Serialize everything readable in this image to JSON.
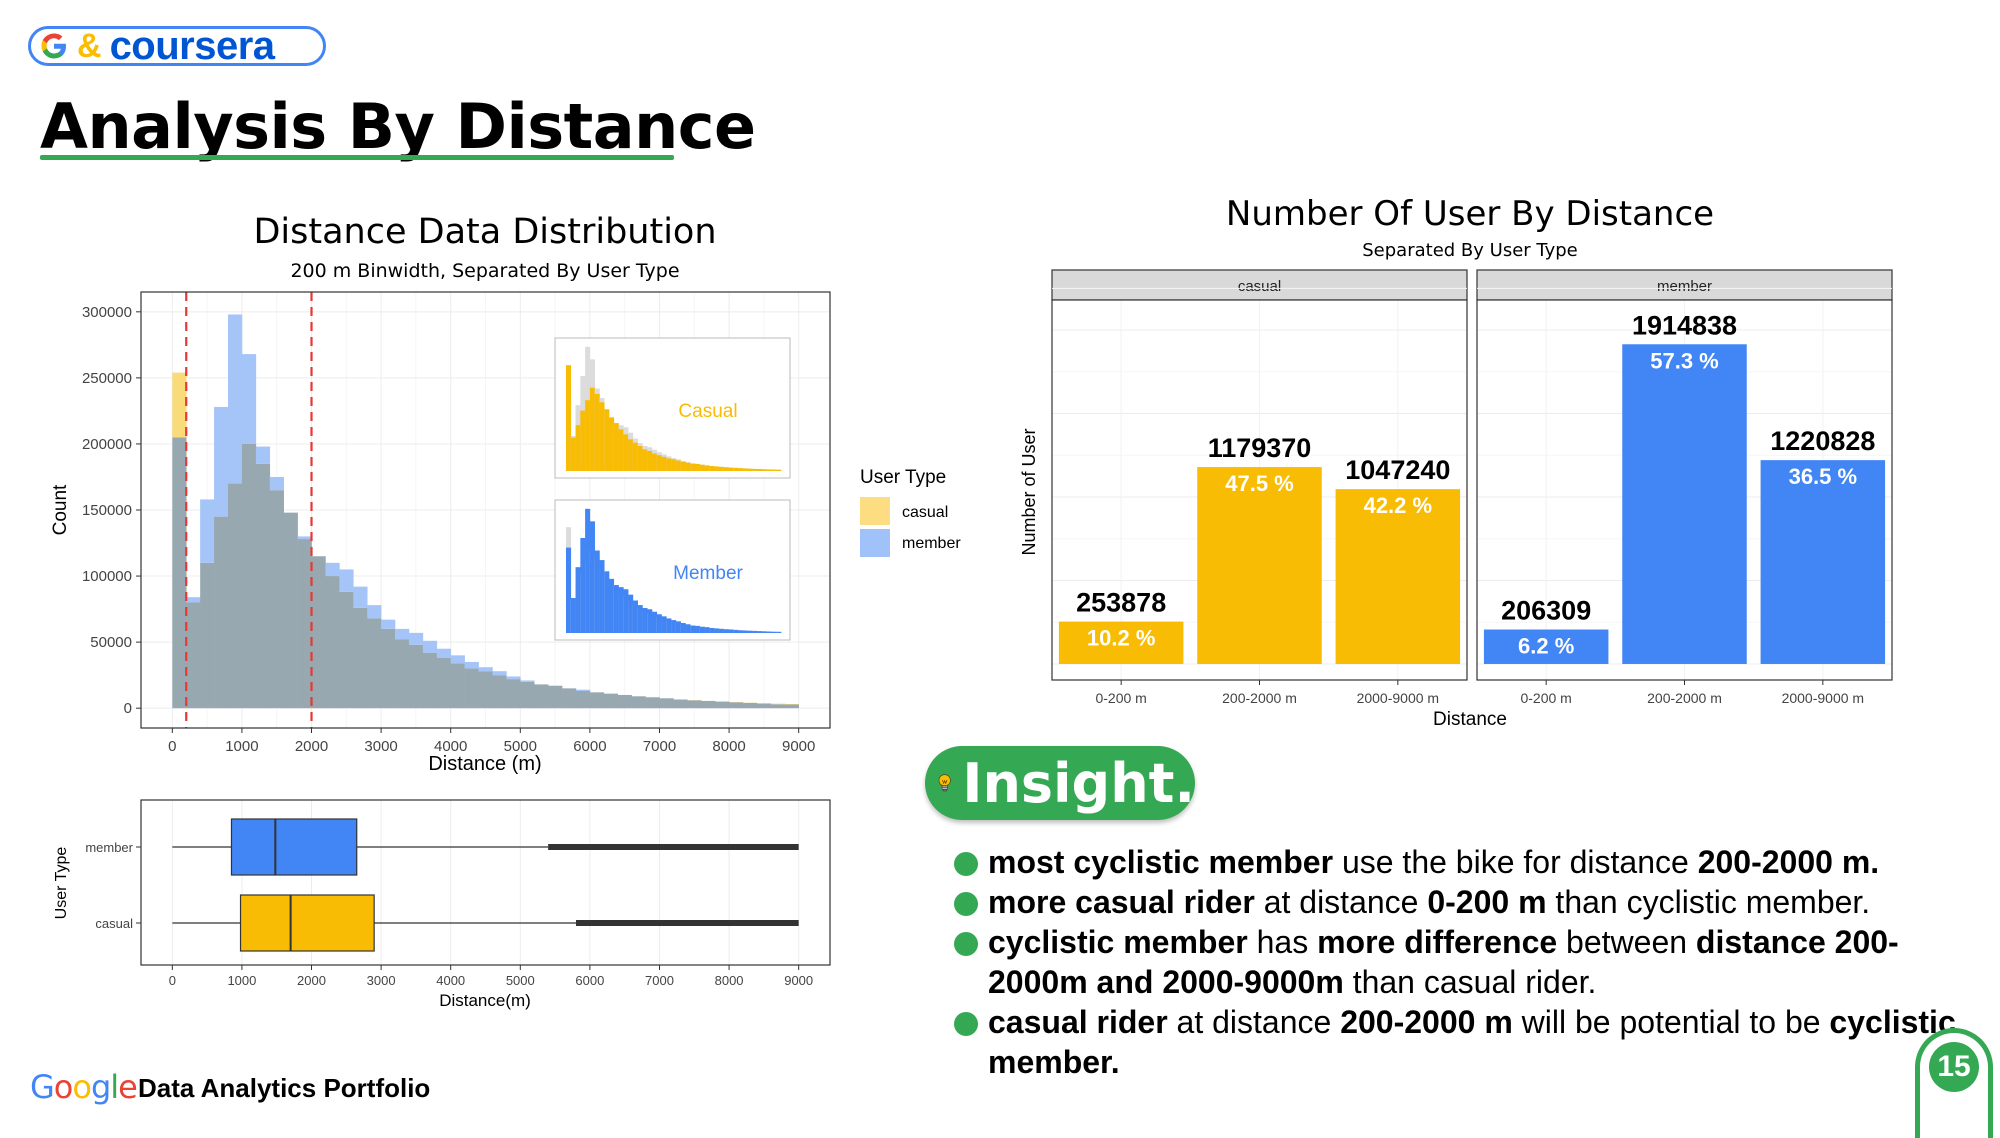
{
  "header": {
    "brand_amp": "&",
    "brand_coursera": "coursera",
    "title": "Analysis By Distance"
  },
  "colors": {
    "casual": "#f9bc04",
    "member": "#4285f4",
    "green": "#34a853",
    "overlap": "#98a8b0"
  },
  "chart_data": [
    {
      "id": "distance-histogram",
      "type": "bar",
      "title": "Distance Data Distribution",
      "subtitle": "200 m Binwidth, Separated By User Type",
      "xlabel": "Distance (m)",
      "ylabel": "Count",
      "xlim": [
        -450,
        9450
      ],
      "ylim": [
        -15000,
        315000
      ],
      "xticks": [
        0,
        1000,
        2000,
        3000,
        4000,
        5000,
        6000,
        7000,
        8000,
        9000
      ],
      "yticks": [
        0,
        50000,
        100000,
        150000,
        200000,
        250000,
        300000
      ],
      "binwidth": 200,
      "reference_lines": [
        200,
        2000
      ],
      "legend": {
        "title": "User Type",
        "position": "right",
        "entries": [
          "casual",
          "member"
        ]
      },
      "insets": [
        {
          "label": "Casual"
        },
        {
          "label": "Member"
        }
      ],
      "series": [
        {
          "name": "casual",
          "values": [
            254000,
            80000,
            110000,
            145000,
            170000,
            200000,
            185000,
            165000,
            148000,
            128000,
            115000,
            100000,
            88000,
            76000,
            68000,
            60000,
            52000,
            48000,
            42000,
            38000,
            34000,
            30000,
            28000,
            25000,
            22000,
            20000,
            18000,
            17000,
            15000,
            13000,
            12000,
            11000,
            10000,
            9000,
            8000,
            7500,
            6800,
            6200,
            5500,
            5000,
            4700,
            4200,
            3800,
            3500,
            3200
          ]
        },
        {
          "name": "member",
          "values": [
            205000,
            84000,
            158000,
            228000,
            298000,
            268000,
            198000,
            175000,
            148000,
            130000,
            115000,
            110000,
            105000,
            92000,
            78000,
            67000,
            60000,
            57000,
            51000,
            45000,
            40000,
            35000,
            31000,
            28000,
            24000,
            21000,
            18000,
            17000,
            15000,
            14000,
            12000,
            11000,
            10000,
            9000,
            8500,
            7500,
            6500,
            6000,
            5500,
            5000,
            4500,
            4000,
            3500,
            3000,
            2800
          ]
        }
      ]
    },
    {
      "id": "distance-boxplot",
      "type": "boxplot",
      "xlabel": "Distance(m)",
      "ylabel": "User Type",
      "xlim": [
        -450,
        9450
      ],
      "xticks": [
        0,
        1000,
        2000,
        3000,
        4000,
        5000,
        6000,
        7000,
        8000,
        9000
      ],
      "categories": [
        "member",
        "casual"
      ],
      "boxes": [
        {
          "name": "member",
          "min": 0,
          "q1": 850,
          "median": 1480,
          "q3": 2650,
          "whisker_high": 5400,
          "outliers_from": 5400,
          "max": 9000
        },
        {
          "name": "casual",
          "min": 0,
          "q1": 980,
          "median": 1700,
          "q3": 2900,
          "whisker_high": 5800,
          "outliers_from": 5800,
          "max": 9000
        }
      ]
    },
    {
      "id": "users-by-distance",
      "type": "bar",
      "title": "Number Of User By Distance",
      "subtitle": "Separated By User Type",
      "xlabel": "Distance",
      "ylabel": "Number of User",
      "categories": [
        "0-200 m",
        "200-2000 m",
        "2000-9000 m"
      ],
      "ylim": [
        -96000,
        2180000
      ],
      "panels": [
        {
          "name": "casual",
          "values": [
            253878,
            1179370,
            1047240
          ],
          "labels": [
            "253878",
            "1179370",
            "1047240"
          ],
          "percents": [
            "10.2 %",
            "47.5 %",
            "42.2 %"
          ]
        },
        {
          "name": "member",
          "values": [
            206309,
            1914838,
            1220828
          ],
          "labels": [
            "206309",
            "1914838",
            "1220828"
          ],
          "percents": [
            "6.2 %",
            "57.3 %",
            "36.5 %"
          ]
        }
      ]
    }
  ],
  "insight": {
    "badge": "Insight.",
    "items": [
      [
        {
          "b": true,
          "t": "most cyclistic member"
        },
        {
          "b": false,
          "t": " use the bike for distance "
        },
        {
          "b": true,
          "t": "200-2000 m."
        }
      ],
      [
        {
          "b": true,
          "t": "more casual rider"
        },
        {
          "b": false,
          "t": " at distance "
        },
        {
          "b": true,
          "t": "0-200 m"
        },
        {
          "b": false,
          "t": " than cyclistic member."
        }
      ],
      [
        {
          "b": true,
          "t": "cyclistic member"
        },
        {
          "b": false,
          "t": " has "
        },
        {
          "b": true,
          "t": "more difference"
        },
        {
          "b": false,
          "t": " between "
        },
        {
          "b": true,
          "t": "distance 200-2000m and 2000-9000m"
        },
        {
          "b": false,
          "t": " than casual rider."
        }
      ],
      [
        {
          "b": true,
          "t": "casual rider"
        },
        {
          "b": false,
          "t": " at distance "
        },
        {
          "b": true,
          "t": "200-2000 m"
        },
        {
          "b": false,
          "t": " will be potential to be "
        },
        {
          "b": true,
          "t": "cyclistic member."
        }
      ]
    ]
  },
  "footer": {
    "google": "Google",
    "text": "Data Analytics Portfolio",
    "page_number": "15"
  }
}
